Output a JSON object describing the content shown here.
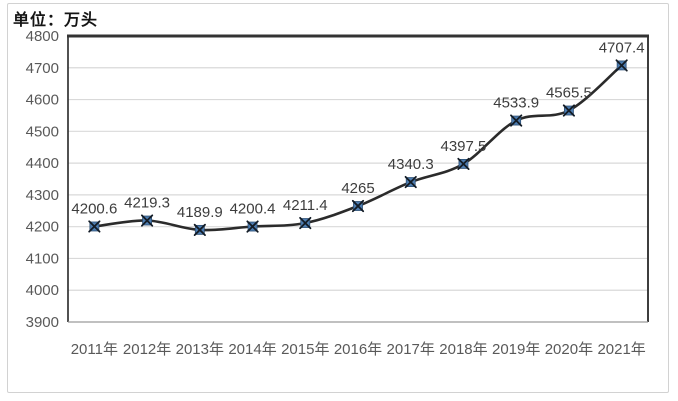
{
  "unit_label": "单位：万头",
  "chart_data": {
    "type": "line",
    "title": "",
    "unit_label": "单位：万头",
    "categories": [
      "2011年",
      "2012年",
      "2013年",
      "2014年",
      "2015年",
      "2016年",
      "2017年",
      "2018年",
      "2019年",
      "2020年",
      "2021年"
    ],
    "values": [
      4200.6,
      4219.3,
      4189.9,
      4200.4,
      4211.4,
      4265,
      4340.3,
      4397.5,
      4533.9,
      4565.5,
      4707.4
    ],
    "point_labels": [
      "4200.6",
      "4219.3",
      "4189.9",
      "4200.4",
      "4211.4",
      "4265",
      "4340.3",
      "4397.5",
      "4533.9",
      "4565.5",
      "4707.4"
    ],
    "y_ticks": [
      "4800",
      "4700",
      "4600",
      "4500",
      "4400",
      "4300",
      "4200",
      "4100",
      "4000",
      "3900"
    ],
    "ylim": [
      3900,
      4800
    ],
    "y_tick_step": 100,
    "grid": true,
    "legend": "none",
    "smoothed_line": true,
    "colors": {
      "line": "#2b2b2b",
      "marker_fill": "#4e7db1",
      "marker_edge": "#2c4f74",
      "marker_x": "#131c26",
      "gridline": "#d9d9d9",
      "plot_border": "#333333",
      "bottom_axis": "#9a9a9a",
      "tick_label": "#595959",
      "data_label": "#3d3d3d"
    }
  }
}
